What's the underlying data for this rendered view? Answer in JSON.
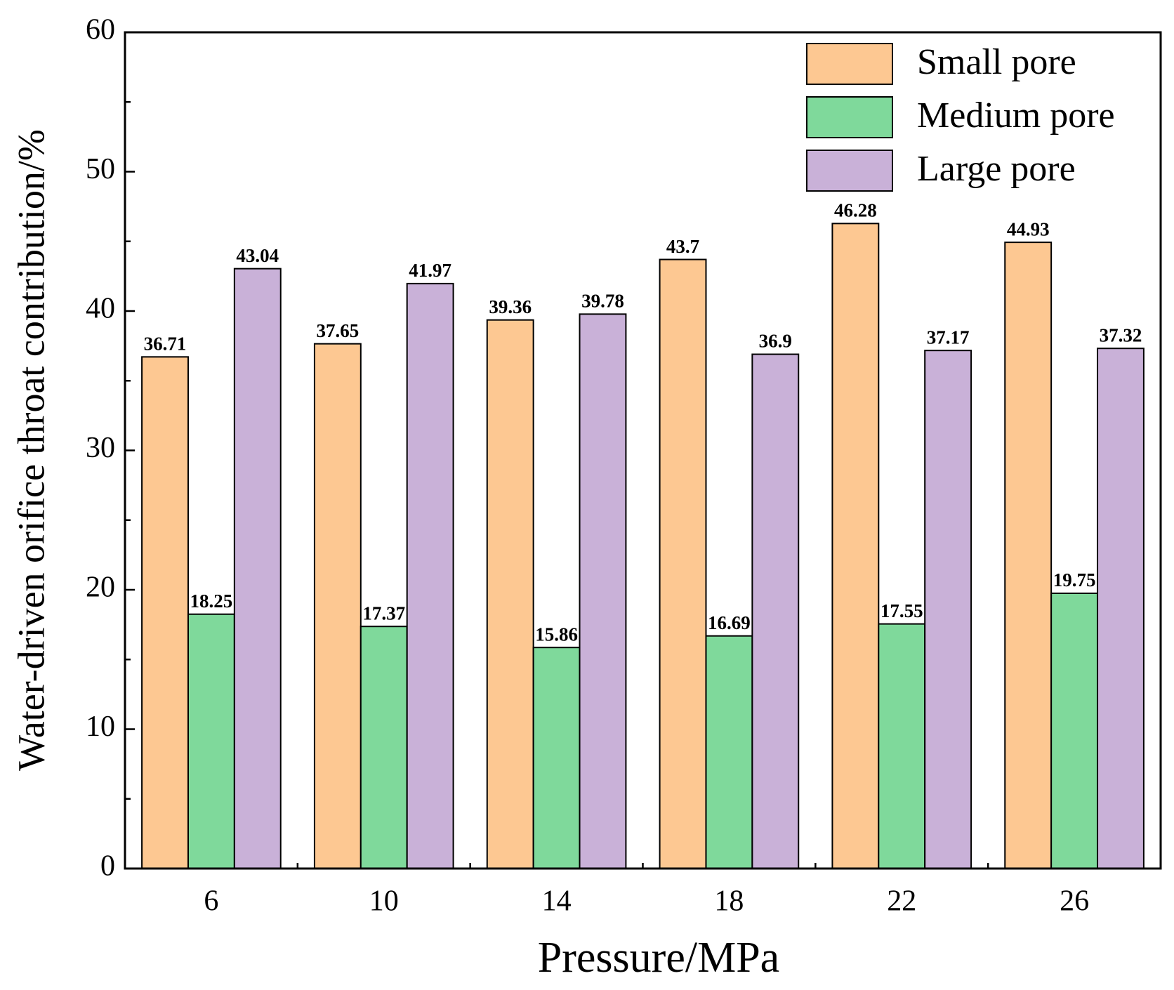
{
  "chart_data": {
    "type": "bar",
    "x_label": "Pressure/MPa",
    "y_label": "Water-driven orifice throat contribution/%",
    "categories": [
      "6",
      "10",
      "14",
      "18",
      "22",
      "26"
    ],
    "series": [
      {
        "name": "Small pore",
        "color": "#fdc892",
        "values": [
          36.71,
          37.65,
          39.36,
          43.7,
          46.28,
          44.93
        ]
      },
      {
        "name": "Medium pore",
        "color": "#7fd99b",
        "values": [
          18.25,
          17.37,
          15.86,
          16.69,
          17.55,
          19.75
        ]
      },
      {
        "name": "Large pore",
        "color": "#c9b1d8",
        "values": [
          43.04,
          41.97,
          39.78,
          36.9,
          37.17,
          37.32
        ]
      }
    ],
    "ylim": [
      0,
      60
    ],
    "yticks": [
      0,
      10,
      20,
      30,
      40,
      50,
      60
    ],
    "legend": "top-right",
    "grid": false
  }
}
